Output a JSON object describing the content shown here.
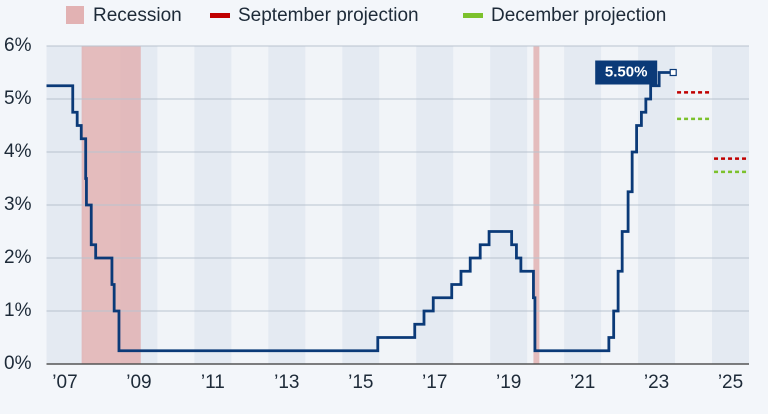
{
  "chart_data": {
    "type": "step-line",
    "xlim": [
      2007,
      2026
    ],
    "ylim": [
      0,
      6
    ],
    "xticks": [
      {
        "value": 2007.5,
        "label": "’07"
      },
      {
        "value": 2009.5,
        "label": "’09"
      },
      {
        "value": 2011.5,
        "label": "’11"
      },
      {
        "value": 2013.5,
        "label": "’13"
      },
      {
        "value": 2015.5,
        "label": "’15"
      },
      {
        "value": 2017.5,
        "label": "’17"
      },
      {
        "value": 2019.5,
        "label": "’19"
      },
      {
        "value": 2021.5,
        "label": "’21"
      },
      {
        "value": 2023.5,
        "label": "’23"
      },
      {
        "value": 2025.5,
        "label": "’25"
      }
    ],
    "yticks": [
      {
        "value": 0,
        "label": "0%"
      },
      {
        "value": 1,
        "label": "1%"
      },
      {
        "value": 2,
        "label": "2%"
      },
      {
        "value": 3,
        "label": "3%"
      },
      {
        "value": 4,
        "label": "4%"
      },
      {
        "value": 5,
        "label": "5%"
      },
      {
        "value": 6,
        "label": "6%"
      }
    ],
    "grid": true,
    "rate": {
      "color": "#0b3a78",
      "x": [
        2007.0,
        2007.71,
        2007.83,
        2007.94,
        2008.06,
        2008.08,
        2008.21,
        2008.33,
        2008.77,
        2008.83,
        2008.96,
        2015.96,
        2016.96,
        2017.21,
        2017.46,
        2017.96,
        2018.21,
        2018.46,
        2018.73,
        2018.97,
        2019.58,
        2019.71,
        2019.83,
        2020.17,
        2020.21,
        2022.21,
        2022.34,
        2022.46,
        2022.57,
        2022.73,
        2022.84,
        2022.96,
        2023.09,
        2023.21,
        2023.34,
        2023.57,
        2023.95
      ],
      "values": [
        5.25,
        4.75,
        4.5,
        4.25,
        3.5,
        3.0,
        2.25,
        2.0,
        1.5,
        1.0,
        0.25,
        0.5,
        0.75,
        1.0,
        1.25,
        1.5,
        1.75,
        2.0,
        2.25,
        2.5,
        2.25,
        2.0,
        1.75,
        1.25,
        0.25,
        0.5,
        1.0,
        1.75,
        2.5,
        3.25,
        4.0,
        4.5,
        4.75,
        5.0,
        5.25,
        5.5,
        5.5
      ]
    },
    "annotations": [
      {
        "text": "5.50%"
      }
    ],
    "recessions": {
      "name": "Recession",
      "color": "#e2b2b3",
      "ranges": [
        [
          2007.95,
          2009.55
        ],
        [
          2020.17,
          2020.33
        ]
      ]
    },
    "projections": [
      {
        "name": "September projection",
        "color": "#c00000",
        "x": [
          2024,
          2025
        ],
        "values": [
          5.125,
          3.875
        ]
      },
      {
        "name": "December projection",
        "color": "#7cc12c",
        "x": [
          2024,
          2025
        ],
        "values": [
          4.625,
          3.625
        ]
      }
    ]
  }
}
